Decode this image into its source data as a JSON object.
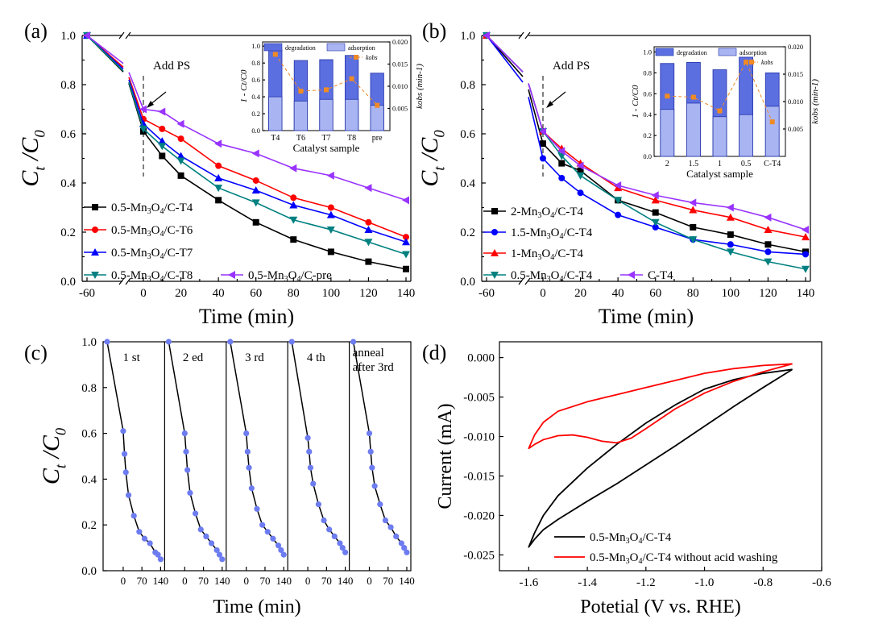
{
  "chart_data": [
    {
      "panel": "(a)",
      "type": "line",
      "xlabel": "Time (min)",
      "ylabel_main": "C",
      "ylabel_sub1": "t",
      "ylabel_mid": " /C",
      "ylabel_sub2": "0",
      "x_ticks": [
        "-60",
        "0",
        "20",
        "40",
        "60",
        "80",
        "100",
        "120",
        "140"
      ],
      "y_ticks": [
        "0.0",
        "0.2",
        "0.4",
        "0.6",
        "0.8",
        "1.0"
      ],
      "ylim": [
        0,
        1.0
      ],
      "annotation": "Add PS",
      "legend_entries": [
        "0.5-Mn3O4/C-T4",
        "0.5-Mn3O4/C-T6",
        "0.5-Mn3O4/C-T7",
        "0.5-Mn3O4/C-T8",
        "0.5-Mn3O4/C-pre"
      ],
      "series": [
        {
          "name": "0.5-Mn3O4/C-T4",
          "color": "#000000",
          "marker": "square",
          "x": [
            -60,
            0,
            10,
            20,
            40,
            60,
            80,
            100,
            120,
            140
          ],
          "values": [
            1.0,
            0.61,
            0.51,
            0.43,
            0.33,
            0.24,
            0.17,
            0.12,
            0.08,
            0.05
          ]
        },
        {
          "name": "0.5-Mn3O4/C-T6",
          "color": "#ff0000",
          "marker": "circle",
          "x": [
            -60,
            0,
            10,
            20,
            40,
            60,
            80,
            100,
            120,
            140
          ],
          "values": [
            1.0,
            0.66,
            0.62,
            0.58,
            0.47,
            0.41,
            0.34,
            0.3,
            0.24,
            0.18
          ]
        },
        {
          "name": "0.5-Mn3O4/C-T7",
          "color": "#0000ff",
          "marker": "triangle-up",
          "x": [
            -60,
            0,
            10,
            20,
            40,
            60,
            80,
            100,
            120,
            140
          ],
          "values": [
            1.0,
            0.64,
            0.57,
            0.51,
            0.42,
            0.37,
            0.31,
            0.27,
            0.21,
            0.16
          ]
        },
        {
          "name": "0.5-Mn3O4/C-T8",
          "color": "#008080",
          "marker": "triangle-down",
          "x": [
            -60,
            0,
            10,
            20,
            40,
            60,
            80,
            100,
            120,
            140
          ],
          "values": [
            1.0,
            0.62,
            0.55,
            0.49,
            0.38,
            0.32,
            0.25,
            0.21,
            0.16,
            0.11
          ]
        },
        {
          "name": "0.5-Mn3O4/C-pre",
          "color": "#9933ff",
          "marker": "triangle-left",
          "x": [
            -60,
            0,
            10,
            20,
            40,
            60,
            80,
            100,
            120,
            140
          ],
          "values": [
            1.0,
            0.7,
            0.69,
            0.64,
            0.56,
            0.52,
            0.46,
            0.43,
            0.38,
            0.33
          ]
        }
      ],
      "inset": {
        "type": "bar",
        "categories": [
          "T4",
          "T6",
          "T7",
          "T8",
          "pre"
        ],
        "degradation_total": [
          0.96,
          0.83,
          0.84,
          0.89,
          0.68
        ],
        "adsorption": [
          0.4,
          0.35,
          0.37,
          0.37,
          0.3
        ],
        "kobs": [
          0.0172,
          0.0089,
          0.0092,
          0.0117,
          0.0057
        ],
        "xlabel": "Catalyst sample",
        "ylabel": "1 - Ct/C0",
        "y2label": "kobs (min-1)",
        "y_ticks": [
          "0.0",
          "0.2",
          "0.4",
          "0.6",
          "0.8",
          "1.0"
        ],
        "y2_ticks": [
          "0.005",
          "0.010",
          "0.015",
          "0.020"
        ],
        "legend": [
          "degradation",
          "adsorption",
          "kobs"
        ]
      }
    },
    {
      "panel": "(b)",
      "type": "line",
      "xlabel": "Time (min)",
      "ylabel_main": "C",
      "ylabel_sub1": "t",
      "ylabel_mid": " /C",
      "ylabel_sub2": "0",
      "x_ticks": [
        "-60",
        "0",
        "20",
        "40",
        "60",
        "80",
        "100",
        "120",
        "140"
      ],
      "y_ticks": [
        "0.0",
        "0.2",
        "0.4",
        "0.6",
        "0.8",
        "1.0"
      ],
      "ylim": [
        0,
        1.0
      ],
      "annotation": "Add PS",
      "legend_entries": [
        "2-Mn3O4/C-T4",
        "1.5-Mn3O4/C-T4",
        "1-Mn3O4/C-T4",
        "0.5-Mn3O4/C-T4",
        "C-T4"
      ],
      "series": [
        {
          "name": "2-Mn3O4/C-T4",
          "color": "#000000",
          "marker": "square",
          "x": [
            -60,
            0,
            10,
            20,
            40,
            60,
            80,
            100,
            120,
            140
          ],
          "values": [
            1.0,
            0.56,
            0.48,
            0.45,
            0.33,
            0.28,
            0.22,
            0.19,
            0.15,
            0.12
          ]
        },
        {
          "name": "1.5-Mn3O4/C-T4",
          "color": "#0000ff",
          "marker": "circle",
          "x": [
            -60,
            0,
            10,
            20,
            40,
            60,
            80,
            100,
            120,
            140
          ],
          "values": [
            1.0,
            0.5,
            0.42,
            0.36,
            0.27,
            0.22,
            0.17,
            0.15,
            0.12,
            0.11
          ]
        },
        {
          "name": "1-Mn3O4/C-T4",
          "color": "#ff0000",
          "marker": "triangle-up",
          "x": [
            -60,
            0,
            10,
            20,
            40,
            60,
            80,
            100,
            120,
            140
          ],
          "values": [
            1.0,
            0.61,
            0.54,
            0.48,
            0.38,
            0.33,
            0.29,
            0.26,
            0.21,
            0.18
          ]
        },
        {
          "name": "0.5-Mn3O4/C-T4",
          "color": "#008080",
          "marker": "triangle-down",
          "x": [
            -60,
            0,
            10,
            20,
            40,
            60,
            80,
            100,
            120,
            140
          ],
          "values": [
            1.0,
            0.61,
            0.51,
            0.43,
            0.33,
            0.24,
            0.17,
            0.12,
            0.08,
            0.05
          ]
        },
        {
          "name": "C-T4",
          "color": "#9933ff",
          "marker": "triangle-left",
          "x": [
            -60,
            0,
            10,
            20,
            40,
            60,
            80,
            100,
            120,
            140
          ],
          "values": [
            1.0,
            0.61,
            0.53,
            0.47,
            0.39,
            0.35,
            0.32,
            0.3,
            0.26,
            0.21
          ]
        }
      ],
      "inset": {
        "type": "bar",
        "categories": [
          "2",
          "1.5",
          "1",
          "0.5",
          "C-T4"
        ],
        "degradation_total": [
          0.89,
          0.9,
          0.83,
          0.95,
          0.8
        ],
        "adsorption": [
          0.45,
          0.51,
          0.38,
          0.4,
          0.48
        ],
        "kobs": [
          0.011,
          0.0108,
          0.0083,
          0.0172,
          0.0063
        ],
        "xlabel": "Catalyst sample",
        "ylabel": "1 - Ct/C0",
        "y2label": "kobs (min-1)",
        "y_ticks": [
          "0.0",
          "0.2",
          "0.4",
          "0.6",
          "0.8",
          "1.0"
        ],
        "y2_ticks": [
          "0.005",
          "0.010",
          "0.015",
          "0.020"
        ],
        "legend": [
          "degradation",
          "adsorption",
          "kobs"
        ]
      }
    },
    {
      "panel": "(c)",
      "type": "line",
      "xlabel": "Time (min)",
      "ylabel_main": "C",
      "ylabel_sub1": "t",
      "ylabel_mid": " /C",
      "ylabel_sub2": "0",
      "y_ticks": [
        "0.0",
        "0.2",
        "0.4",
        "0.6",
        "0.8",
        "1.0"
      ],
      "x_ticks": [
        "0",
        "70",
        "140"
      ],
      "ylim": [
        0,
        1.0
      ],
      "cycles": [
        {
          "label": "1 st",
          "x": [
            -60,
            0,
            5,
            10,
            20,
            40,
            60,
            80,
            100,
            120,
            130,
            140
          ],
          "values": [
            1.0,
            0.61,
            0.51,
            0.43,
            0.33,
            0.24,
            0.17,
            0.14,
            0.12,
            0.08,
            0.07,
            0.05
          ]
        },
        {
          "label": "2 ed",
          "x": [
            -60,
            0,
            5,
            10,
            20,
            40,
            60,
            80,
            100,
            120,
            130,
            140
          ],
          "values": [
            1.0,
            0.6,
            0.52,
            0.44,
            0.34,
            0.25,
            0.18,
            0.15,
            0.12,
            0.09,
            0.07,
            0.05
          ]
        },
        {
          "label": "3 rd",
          "x": [
            -60,
            0,
            5,
            10,
            20,
            40,
            60,
            80,
            100,
            120,
            130,
            140
          ],
          "values": [
            1.0,
            0.6,
            0.52,
            0.45,
            0.36,
            0.27,
            0.2,
            0.17,
            0.14,
            0.11,
            0.09,
            0.07
          ]
        },
        {
          "label": "4 th",
          "x": [
            -60,
            0,
            5,
            10,
            20,
            40,
            60,
            80,
            100,
            120,
            130,
            140
          ],
          "values": [
            1.0,
            0.58,
            0.52,
            0.45,
            0.38,
            0.29,
            0.22,
            0.18,
            0.15,
            0.12,
            0.1,
            0.08
          ]
        },
        {
          "label_line1": "anneal",
          "label_line2": "after 3rd",
          "x": [
            -60,
            0,
            5,
            10,
            20,
            40,
            60,
            80,
            100,
            120,
            130,
            140
          ],
          "values": [
            1.0,
            0.6,
            0.52,
            0.45,
            0.37,
            0.29,
            0.22,
            0.19,
            0.15,
            0.12,
            0.1,
            0.08
          ]
        }
      ]
    },
    {
      "panel": "(d)",
      "type": "line",
      "xlabel": "Potetial (V vs. RHE)",
      "ylabel": "Current (mA)",
      "x_ticks": [
        "-1.6",
        "-1.4",
        "-1.2",
        "-1.0",
        "-0.8",
        "-0.6"
      ],
      "y_ticks": [
        "0.000",
        "-0.005",
        "-0.010",
        "-0.015",
        "-0.020",
        "-0.025"
      ],
      "xlim": [
        -1.7,
        -0.6
      ],
      "ylim": [
        -0.027,
        0.002
      ],
      "legend_entries": [
        "0.5-Mn3O4/C-T4",
        "0.5-Mn3O4/C-T4 without acid washing"
      ],
      "series": [
        {
          "name": "0.5-Mn3O4/C-T4",
          "color": "#000000",
          "x": [
            -0.7,
            -0.8,
            -0.9,
            -1.0,
            -1.1,
            -1.2,
            -1.3,
            -1.4,
            -1.5,
            -1.55,
            -1.58,
            -1.6,
            -1.58,
            -1.55,
            -1.5,
            -1.4,
            -1.3,
            -1.2,
            -1.1,
            -1.0,
            -0.9,
            -0.8,
            -0.7
          ],
          "values": [
            -0.0015,
            -0.0038,
            -0.0062,
            -0.0087,
            -0.0112,
            -0.0136,
            -0.016,
            -0.0182,
            -0.0205,
            -0.0218,
            -0.023,
            -0.024,
            -0.0222,
            -0.02,
            -0.0175,
            -0.014,
            -0.011,
            -0.0083,
            -0.006,
            -0.004,
            -0.0028,
            -0.002,
            -0.0015
          ]
        },
        {
          "name": "0.5-Mn3O4/C-T4 without acid washing",
          "color": "#ff0000",
          "x": [
            -0.7,
            -0.8,
            -0.9,
            -1.0,
            -1.1,
            -1.2,
            -1.25,
            -1.3,
            -1.35,
            -1.4,
            -1.45,
            -1.5,
            -1.55,
            -1.58,
            -1.6,
            -1.58,
            -1.55,
            -1.5,
            -1.4,
            -1.3,
            -1.2,
            -1.1,
            -1.0,
            -0.9,
            -0.8,
            -0.7
          ],
          "values": [
            -0.0008,
            -0.0018,
            -0.003,
            -0.0045,
            -0.0065,
            -0.009,
            -0.0102,
            -0.0108,
            -0.0106,
            -0.0101,
            -0.0098,
            -0.0099,
            -0.0104,
            -0.011,
            -0.0115,
            -0.0098,
            -0.0082,
            -0.0068,
            -0.0056,
            -0.0047,
            -0.0038,
            -0.0029,
            -0.002,
            -0.0014,
            -0.001,
            -0.0008
          ]
        }
      ]
    }
  ],
  "panel_labels": [
    "(a)",
    "(b)",
    "(c)",
    "(d)"
  ]
}
